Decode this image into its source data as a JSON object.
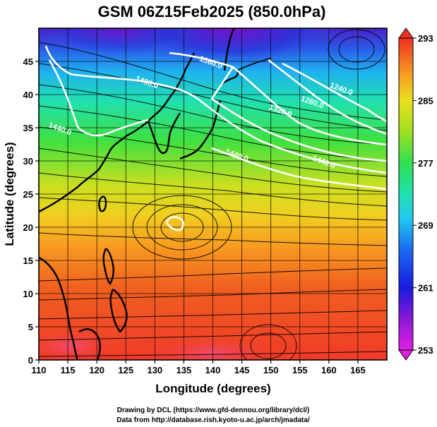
{
  "title": "GSM 06Z15Feb2025 (850.0hPa)",
  "xaxis": {
    "label": "Longitude (degrees)",
    "range": [
      110,
      170
    ],
    "ticks": [
      110,
      115,
      120,
      125,
      130,
      135,
      140,
      145,
      150,
      155,
      160,
      165
    ]
  },
  "yaxis": {
    "label": "Latitude  (degrees)",
    "range": [
      0,
      50
    ],
    "ticks": [
      0,
      5,
      10,
      15,
      20,
      25,
      30,
      35,
      40,
      45
    ]
  },
  "colorbar": {
    "ticks": [
      253,
      261,
      269,
      277,
      285,
      293
    ],
    "range": [
      253,
      293
    ],
    "colors": [
      "#e020e0",
      "#8a18d8",
      "#1a1ae0",
      "#1a6af0",
      "#20c8f0",
      "#20e0b0",
      "#30e050",
      "#a0e020",
      "#e8e020",
      "#f8a020",
      "#f06020",
      "#f03020"
    ]
  },
  "contours": [
    {
      "label": "1240.0",
      "lon": 162,
      "lat": 40.5
    },
    {
      "label": "1280.0",
      "lon": 157,
      "lat": 38.5
    },
    {
      "label": "1320.0",
      "lon": 151.5,
      "lat": 37.2
    },
    {
      "label": "1360.0",
      "lon": 139.5,
      "lat": 44.5
    },
    {
      "label": "1400.0",
      "lon": 128.5,
      "lat": 41.5
    },
    {
      "label": "1440.0",
      "lon": 113.5,
      "lat": 34.5
    },
    {
      "label": "1440.0",
      "lon": 144,
      "lat": 30.5
    },
    {
      "label": "1440.0",
      "lon": 159,
      "lat": 29.5
    }
  ],
  "credits": {
    "line1": "Drawing by DCL (https://www.gfd-dennou.org/library/dcl/)",
    "line2": "Data from http://database.rish.kyoto-u.ac.jp/arch/jmadata/"
  }
}
